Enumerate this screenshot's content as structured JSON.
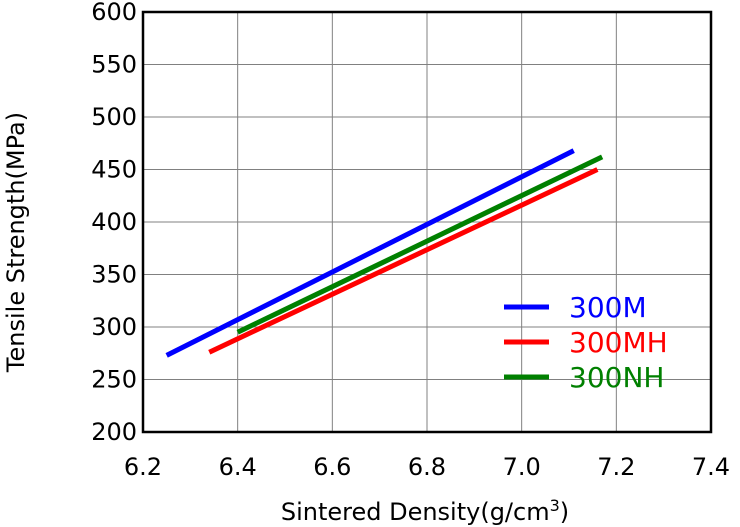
{
  "chart_data": {
    "type": "line",
    "xlabel": "Sintered Density(g/cm",
    "xlabel_sup": "3",
    "xlabel_suffix": ")",
    "ylabel": "Tensile Strength(MPa)",
    "xlim": [
      6.2,
      7.4
    ],
    "ylim": [
      200,
      600
    ],
    "xticks": [
      "6.2",
      "6.4",
      "6.6",
      "6.8",
      "7.0",
      "7.2",
      "7.4"
    ],
    "yticks": [
      "200",
      "250",
      "300",
      "350",
      "400",
      "450",
      "500",
      "550",
      "600"
    ],
    "grid": true,
    "legend_position": "bottom-right",
    "series": [
      {
        "name": "300M",
        "color": "#0000ff",
        "x": [
          6.25,
          7.11
        ],
        "y": [
          273,
          468
        ]
      },
      {
        "name": "300MH",
        "color": "#ff0000",
        "x": [
          6.34,
          7.16
        ],
        "y": [
          276,
          450
        ]
      },
      {
        "name": "300NH",
        "color": "#008000",
        "x": [
          6.4,
          7.17
        ],
        "y": [
          295,
          462
        ]
      }
    ]
  }
}
